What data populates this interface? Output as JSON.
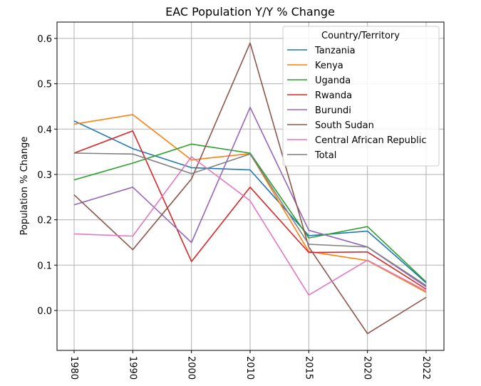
{
  "chart_data": {
    "type": "line",
    "title": "EAC Population Y/Y % Change",
    "xlabel": "",
    "ylabel": "Population % Change",
    "categories": [
      "1980",
      "1990",
      "2000",
      "2010",
      "2015",
      "2020",
      "2022"
    ],
    "ylim": [
      -0.088,
      0.636
    ],
    "yticks": [
      "0.0",
      "0.1",
      "0.2",
      "0.3",
      "0.4",
      "0.5",
      "0.6"
    ],
    "grid": true,
    "legend": {
      "title": "Country/Territory",
      "placement": "top-right"
    },
    "series": [
      {
        "name": "Tanzania",
        "color": "#1f77b4",
        "values": [
          0.418,
          0.357,
          0.315,
          0.31,
          0.165,
          0.175,
          0.061
        ]
      },
      {
        "name": "Kenya",
        "color": "#ff7f0e",
        "values": [
          0.411,
          0.432,
          0.332,
          0.346,
          0.13,
          0.11,
          0.04
        ]
      },
      {
        "name": "Uganda",
        "color": "#2ca02c",
        "values": [
          0.288,
          0.325,
          0.367,
          0.347,
          0.16,
          0.185,
          0.063
        ]
      },
      {
        "name": "Rwanda",
        "color": "#d62728",
        "values": [
          0.347,
          0.396,
          0.108,
          0.272,
          0.128,
          0.129,
          0.047
        ]
      },
      {
        "name": "Burundi",
        "color": "#9467bd",
        "values": [
          0.233,
          0.272,
          0.15,
          0.448,
          0.177,
          0.14,
          0.052
        ]
      },
      {
        "name": "South Sudan",
        "color": "#8c564b",
        "values": [
          0.255,
          0.134,
          0.29,
          0.59,
          0.14,
          -0.051,
          0.029
        ]
      },
      {
        "name": "Central African Republic",
        "color": "#e377c2",
        "values": [
          0.169,
          0.164,
          0.339,
          0.242,
          0.034,
          0.111,
          0.043
        ]
      },
      {
        "name": "Total",
        "color": "#7f7f7f",
        "values": [
          0.347,
          0.345,
          0.302,
          0.345,
          0.146,
          0.14,
          0.055
        ]
      }
    ]
  }
}
